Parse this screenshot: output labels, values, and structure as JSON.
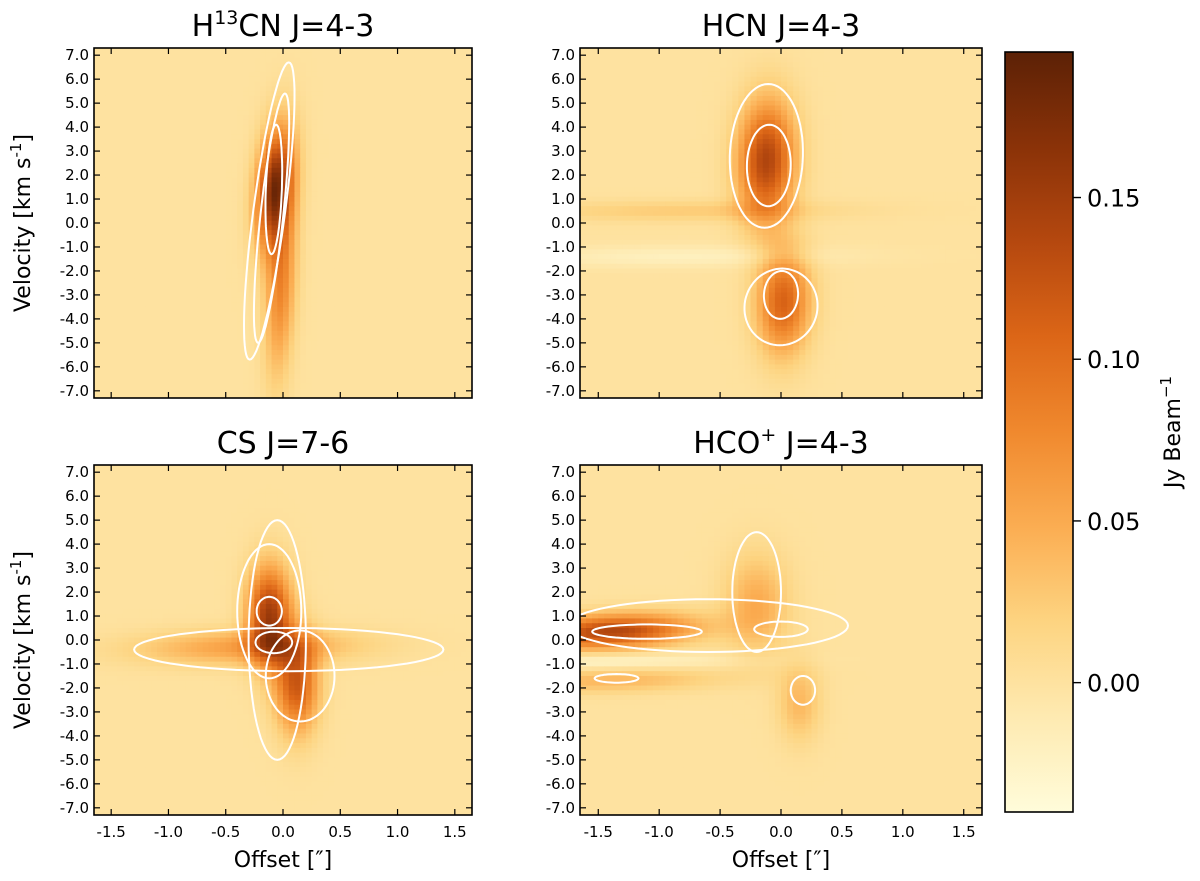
{
  "chart_data": [
    {
      "type": "heatmap",
      "title": "H13CN J=4-3",
      "title_parts": {
        "base": "H",
        "sup": "13",
        "rest": "CN J=4-3"
      },
      "xlabel": "",
      "ylabel": "Velocity [km s-1]",
      "ylabel_parts": {
        "main": "Velocity [km s",
        "sup": "-1",
        "close": "]"
      },
      "xlim": [
        -1.65,
        1.65
      ],
      "ylim": [
        -7.3,
        7.3
      ],
      "yticks": [
        "7.0",
        "6.0",
        "5.0",
        "4.0",
        "3.0",
        "2.0",
        "1.0",
        "0.0",
        "-1.0",
        "-2.0",
        "-3.0",
        "-4.0",
        "-5.0",
        "-6.0",
        "-7.0"
      ],
      "xticks": [],
      "components": [
        {
          "x0": -0.07,
          "x1": 0.07,
          "sx": 0.11,
          "v0": 1.5,
          "sv": 1.7,
          "amp": 0.17
        },
        {
          "x0": -0.02,
          "x1": 0.05,
          "sx": 0.09,
          "v0": -2.5,
          "sv": 2.6,
          "amp": 0.08
        }
      ],
      "contours": [
        {
          "x0": -0.12,
          "x1": 0.1,
          "v0": 0.5,
          "rx": 0.14,
          "rv": 6.2
        },
        {
          "x0": -0.1,
          "x1": 0.08,
          "v0": 0.2,
          "rx": 0.1,
          "rv": 5.2
        },
        {
          "x0": -0.08,
          "x1": -0.02,
          "v0": 1.4,
          "rx": 0.07,
          "rv": 2.7
        }
      ]
    },
    {
      "type": "heatmap",
      "title": "HCN J=4-3",
      "title_parts": {
        "base": "HCN J=4-3",
        "sup": "",
        "rest": ""
      },
      "xlabel": "",
      "ylabel": "",
      "xlim": [
        -1.65,
        1.65
      ],
      "ylim": [
        -7.3,
        7.3
      ],
      "yticks": [
        "7.0",
        "6.0",
        "5.0",
        "4.0",
        "3.0",
        "2.0",
        "1.0",
        "0.0",
        "-1.0",
        "-2.0",
        "-3.0",
        "-4.0",
        "-5.0",
        "-6.0",
        "-7.0"
      ],
      "xticks": [],
      "components": [
        {
          "x0": -0.12,
          "x1": -0.08,
          "sx": 0.16,
          "v0": 2.6,
          "sv": 1.7,
          "amp": 0.14
        },
        {
          "x0": 0.02,
          "x1": 0.05,
          "sx": 0.15,
          "v0": -3.3,
          "sv": 1.5,
          "amp": 0.11
        },
        {
          "x0": -0.8,
          "x1": 0.8,
          "sx": 0.9,
          "v0": 0.5,
          "sv": 0.3,
          "amp": 0.025
        },
        {
          "x0": -0.8,
          "x1": 0.8,
          "sx": 0.9,
          "v0": -1.4,
          "sv": 0.3,
          "amp": -0.02
        }
      ],
      "contours": [
        {
          "x0": -0.12,
          "x1": -0.08,
          "v0": 2.8,
          "rx": 0.3,
          "rv": 3.0
        },
        {
          "x0": -0.1,
          "x1": -0.08,
          "v0": 2.4,
          "rx": 0.18,
          "rv": 1.7
        },
        {
          "x0": 0.0,
          "x1": 0.05,
          "v0": -3.5,
          "rx": 0.3,
          "rv": 1.6
        },
        {
          "x0": 0.0,
          "x1": 0.05,
          "v0": -3.0,
          "rx": 0.14,
          "rv": 1.0
        }
      ]
    },
    {
      "type": "heatmap",
      "title": "CS J=7-6",
      "title_parts": {
        "base": "CS J=7-6",
        "sup": "",
        "rest": ""
      },
      "xlabel": "Offset [″]",
      "ylabel": "Velocity [km s-1]",
      "ylabel_parts": {
        "main": "Velocity [km s",
        "sup": "-1",
        "close": "]"
      },
      "xlim": [
        -1.65,
        1.65
      ],
      "ylim": [
        -7.3,
        7.3
      ],
      "yticks": [
        "7.0",
        "6.0",
        "5.0",
        "4.0",
        "3.0",
        "2.0",
        "1.0",
        "0.0",
        "-1.0",
        "-2.0",
        "-3.0",
        "-4.0",
        "-5.0",
        "-6.0",
        "-7.0"
      ],
      "xticks": [
        "-1.5",
        "-1.0",
        "-0.5",
        "0.0",
        "0.5",
        "1.0",
        "1.5"
      ],
      "components": [
        {
          "x0": -0.12,
          "x1": -0.12,
          "sx": 0.13,
          "v0": 1.0,
          "sv": 1.4,
          "amp": 0.15
        },
        {
          "x0": 0.12,
          "x1": 0.12,
          "sx": 0.13,
          "v0": -1.8,
          "sv": 1.4,
          "amp": 0.12
        },
        {
          "x0": -0.3,
          "x1": 0.9,
          "sx": 0.65,
          "v0": -0.3,
          "sv": 0.5,
          "amp": 0.06
        }
      ],
      "contours": [
        {
          "x0": -0.05,
          "x1": -0.05,
          "v0": 0.0,
          "rx": 0.25,
          "rv": 5.0
        },
        {
          "x0": 0.05,
          "x1": 0.05,
          "v0": -0.4,
          "rx": 1.35,
          "rv": 0.9
        },
        {
          "x0": -0.12,
          "x1": -0.12,
          "v0": 1.2,
          "rx": 0.28,
          "rv": 2.8
        },
        {
          "x0": 0.15,
          "x1": 0.15,
          "v0": -1.5,
          "rx": 0.3,
          "rv": 1.9
        },
        {
          "x0": -0.12,
          "x1": -0.12,
          "v0": 1.2,
          "rx": 0.11,
          "rv": 0.6
        },
        {
          "x0": -0.08,
          "x1": -0.08,
          "v0": -0.1,
          "rx": 0.16,
          "rv": 0.45
        }
      ]
    },
    {
      "type": "heatmap",
      "title": "HCO+ J=4-3",
      "title_parts": {
        "base": "HCO",
        "sup": "+",
        "rest": " J=4-3"
      },
      "xlabel": "Offset [″]",
      "ylabel": "",
      "xlim": [
        -1.65,
        1.65
      ],
      "ylim": [
        -7.3,
        7.3
      ],
      "yticks": [
        "7.0",
        "6.0",
        "5.0",
        "4.0",
        "3.0",
        "2.0",
        "1.0",
        "0.0",
        "-1.0",
        "-2.0",
        "-3.0",
        "-4.0",
        "-5.0",
        "-6.0",
        "-7.0"
      ],
      "xticks": [
        "-1.5",
        "-1.0",
        "-0.5",
        "0.0",
        "0.5",
        "1.0",
        "1.5"
      ],
      "components": [
        {
          "x0": -1.4,
          "x1": 0.3,
          "sx": 0.45,
          "v0": 0.35,
          "sv": 0.5,
          "amp": 0.14
        },
        {
          "x0": -0.2,
          "x1": -0.2,
          "sx": 0.18,
          "v0": 1.5,
          "sv": 1.4,
          "amp": 0.05
        },
        {
          "x0": -1.4,
          "x1": 1.0,
          "sx": 0.6,
          "v0": -1.7,
          "sv": 0.35,
          "amp": 0.04
        },
        {
          "x0": 0.15,
          "x1": 0.15,
          "sx": 0.12,
          "v0": -2.6,
          "sv": 1.1,
          "amp": 0.04
        },
        {
          "x0": -1.6,
          "x1": 1.6,
          "sx": 0.8,
          "v0": -0.9,
          "sv": 0.22,
          "amp": -0.03
        }
      ],
      "contours": [
        {
          "x0": -0.6,
          "x1": -0.6,
          "v0": 0.6,
          "rx": 1.15,
          "rv": 1.1
        },
        {
          "x0": -0.2,
          "x1": -0.2,
          "v0": 2.0,
          "rx": 0.2,
          "rv": 2.5
        },
        {
          "x0": -1.1,
          "x1": -1.1,
          "v0": 0.35,
          "rx": 0.45,
          "rv": 0.3
        },
        {
          "x0": 0.0,
          "x1": 0.0,
          "v0": 0.45,
          "rx": 0.22,
          "rv": 0.32
        },
        {
          "x0": -1.35,
          "x1": -1.35,
          "v0": -1.6,
          "rx": 0.18,
          "rv": 0.18
        },
        {
          "x0": 0.18,
          "x1": 0.18,
          "v0": -2.1,
          "rx": 0.1,
          "rv": 0.6
        }
      ]
    }
  ],
  "colorbar": {
    "label": "Jy Beam-1",
    "label_parts": {
      "main": "Jy Beam",
      "sup": "−1"
    },
    "vmin": -0.04,
    "vmax": 0.195,
    "ticks": [
      0.0,
      0.05,
      0.1,
      0.15
    ],
    "tick_labels": [
      "0.00",
      "0.05",
      "0.10",
      "0.15"
    ],
    "colormap": [
      "#fffcda",
      "#feeab1",
      "#fdd481",
      "#fbad52",
      "#f0892e",
      "#dc6617",
      "#b5480f",
      "#8a3208",
      "#5c2106"
    ]
  }
}
